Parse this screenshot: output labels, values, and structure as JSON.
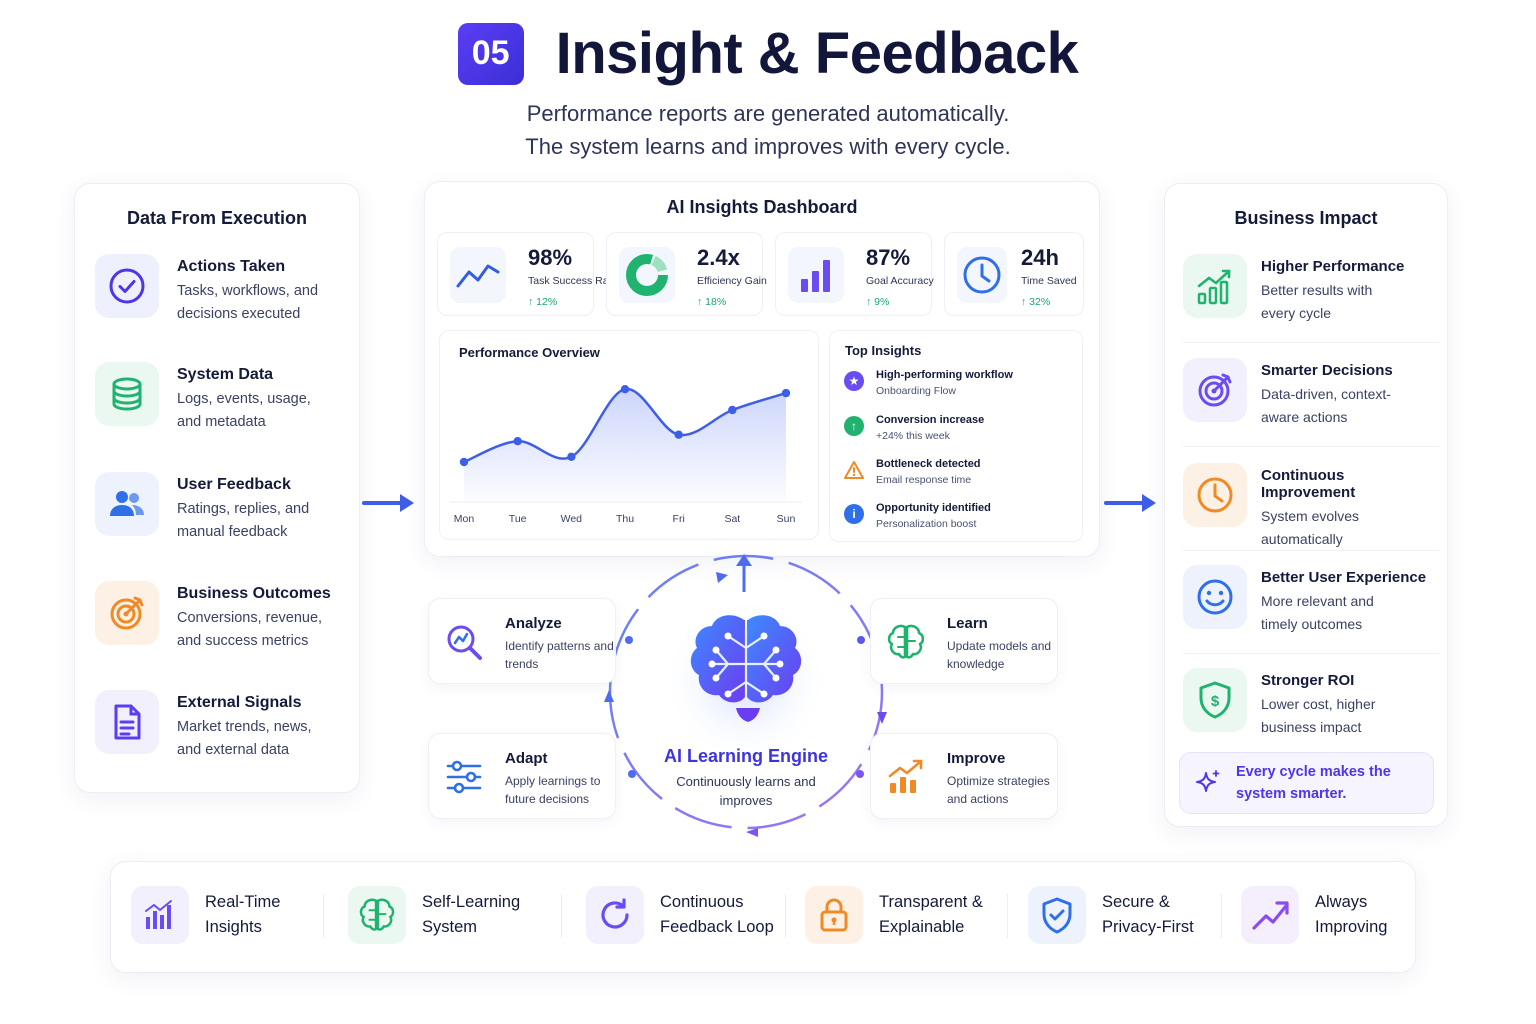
{
  "header": {
    "step": "05",
    "title": "Insight & Feedback",
    "subtitle_line1": "Performance reports are generated automatically.",
    "subtitle_line2": "The system learns and improves with every cycle."
  },
  "left_panel": {
    "title": "Data From Execution",
    "items": [
      {
        "name": "Actions Taken",
        "desc1": "Tasks, workflows, and",
        "desc2": "decisions executed",
        "icon": "check-circle-icon"
      },
      {
        "name": "System Data",
        "desc1": "Logs, events, usage,",
        "desc2": "and metadata",
        "icon": "database-icon"
      },
      {
        "name": "User Feedback",
        "desc1": "Ratings, replies, and",
        "desc2": "manual feedback",
        "icon": "users-icon"
      },
      {
        "name": "Business Outcomes",
        "desc1": "Conversions, revenue,",
        "desc2": "and success metrics",
        "icon": "target-icon"
      },
      {
        "name": "External Signals",
        "desc1": "Market trends, news,",
        "desc2": "and external data",
        "icon": "document-icon"
      }
    ]
  },
  "dashboard": {
    "title": "AI Insights Dashboard",
    "kpis": [
      {
        "value": "98%",
        "label": "Task Success Rate",
        "delta": "↑ 12%",
        "icon": "trend-line-icon"
      },
      {
        "value": "2.4x",
        "label": "Efficiency Gain",
        "delta": "↑ 18%",
        "icon": "donut-icon"
      },
      {
        "value": "87%",
        "label": "Goal Accuracy",
        "delta": "↑ 9%",
        "icon": "bar-chart-icon"
      },
      {
        "value": "24h",
        "label": "Time Saved",
        "delta": "↑ 32%",
        "icon": "clock-icon"
      }
    ],
    "performance": {
      "title": "Performance Overview"
    },
    "top_insights": {
      "title": "Top Insights",
      "items": [
        {
          "name": "High-performing workflow",
          "sub": "Onboarding Flow",
          "icon": "star-icon",
          "color": "#6b4cf0"
        },
        {
          "name": "Conversion increase",
          "sub": "+24% this week",
          "icon": "arrow-up-icon",
          "color": "#1fb36f"
        },
        {
          "name": "Bottleneck detected",
          "sub": "Email response time",
          "icon": "warning-icon",
          "color": "#f08a24"
        },
        {
          "name": "Opportunity identified",
          "sub": "Personalization boost",
          "icon": "info-icon",
          "color": "#2f6fe8"
        }
      ]
    }
  },
  "chart_data": {
    "type": "line",
    "title": "Performance Overview",
    "categories": [
      "Mon",
      "Tue",
      "Wed",
      "Thu",
      "Fri",
      "Sat",
      "Sun"
    ],
    "values": [
      30,
      46,
      34,
      86,
      51,
      70,
      83
    ],
    "ylim": [
      0,
      100
    ],
    "grid": false
  },
  "loop": {
    "engine_title": "AI Learning Engine",
    "engine_desc": "Continuously learns and improves",
    "cards": [
      {
        "name": "Analyze",
        "desc": "Identify patterns and trends",
        "icon": "magnifier-chart-icon"
      },
      {
        "name": "Learn",
        "desc": "Update models and knowledge",
        "icon": "brain-icon"
      },
      {
        "name": "Adapt",
        "desc": "Apply learnings to future decisions",
        "icon": "sliders-icon"
      },
      {
        "name": "Improve",
        "desc": "Optimize strategies and actions",
        "icon": "growth-chart-icon"
      }
    ]
  },
  "right_panel": {
    "title": "Business Impact",
    "items": [
      {
        "name": "Higher Performance",
        "desc1": "Better results with",
        "desc2": "every cycle",
        "icon": "growth-chart-icon"
      },
      {
        "name": "Smarter Decisions",
        "desc1": "Data-driven, context-",
        "desc2": "aware actions",
        "icon": "target-icon"
      },
      {
        "name": "Continuous Improvement",
        "desc1": "System evolves",
        "desc2": "automatically",
        "icon": "clock-icon"
      },
      {
        "name": "Better User Experience",
        "desc1": "More relevant and",
        "desc2": "timely outcomes",
        "icon": "smile-icon"
      },
      {
        "name": "Stronger ROI",
        "desc1": "Lower cost, higher",
        "desc2": "business impact",
        "icon": "dollar-shield-icon"
      }
    ],
    "callout_line1": "Every cycle makes the",
    "callout_line2": "system smarter."
  },
  "features": [
    {
      "label": "Real-Time\nInsights",
      "icon": "bar-chart-icon"
    },
    {
      "label": "Self-Learning\nSystem",
      "icon": "brain-icon"
    },
    {
      "label": "Continuous\nFeedback Loop",
      "icon": "refresh-icon"
    },
    {
      "label": "Transparent &\nExplainable",
      "icon": "lock-icon"
    },
    {
      "label": "Secure &\nPrivacy-First",
      "icon": "shield-check-icon"
    },
    {
      "label": "Always\nImproving",
      "icon": "trend-up-icon"
    }
  ],
  "colors": {
    "accent": "#4f35e8",
    "blue": "#2f5fe0",
    "green": "#1fb36f",
    "orange": "#f08a24",
    "purple": "#6b4cf0"
  }
}
